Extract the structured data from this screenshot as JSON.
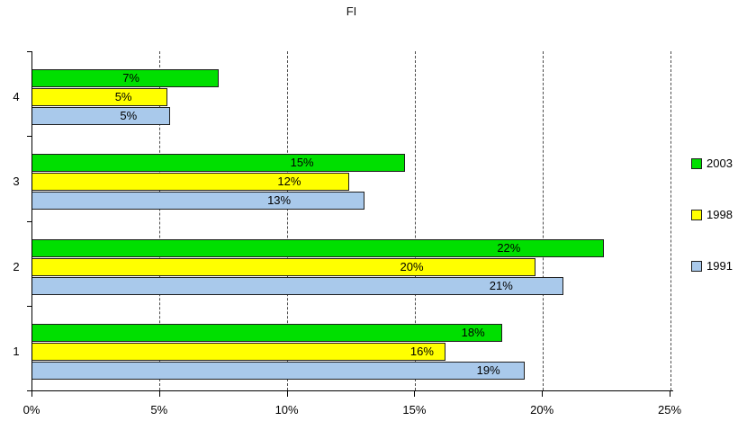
{
  "title": "FI",
  "chart_data": {
    "type": "bar",
    "orientation": "horizontal",
    "title": "FI",
    "categories": [
      "4",
      "3",
      "2",
      "1"
    ],
    "series": [
      {
        "name": "2003",
        "color": "#00DF00",
        "values": [
          7,
          15,
          22,
          18
        ]
      },
      {
        "name": "1998",
        "color": "#FFFF00",
        "values": [
          5,
          12,
          20,
          16
        ]
      },
      {
        "name": "1991",
        "color": "#A9C9EB",
        "values": [
          5,
          13,
          21,
          19
        ]
      }
    ],
    "value_suffix": "%",
    "xlim": [
      0,
      25
    ],
    "x_tick_values": [
      0,
      5,
      10,
      15,
      20,
      25
    ],
    "x_tick_labels": [
      "0%",
      "5%",
      "10%",
      "15%",
      "20%",
      "25%"
    ],
    "gridlines": {
      "style": "dashed",
      "color": "#4b4b4b",
      "at": [
        5,
        10,
        15,
        20,
        25
      ]
    },
    "legend_position": "right",
    "bar_border_color": "#1f1f1f",
    "bar_length_pct_measured": {
      "2003": [
        7.3,
        14.6,
        22.4,
        18.4
      ],
      "1998": [
        5.3,
        12.4,
        19.7,
        16.2
      ],
      "1991": [
        5.4,
        13.0,
        20.8,
        19.3
      ]
    },
    "label_center_pct_measured": {
      "2003": [
        3.9,
        10.6,
        18.7,
        17.3
      ],
      "1998": [
        3.6,
        10.1,
        14.9,
        15.3
      ],
      "1991": [
        3.8,
        9.7,
        18.4,
        17.9
      ]
    }
  }
}
